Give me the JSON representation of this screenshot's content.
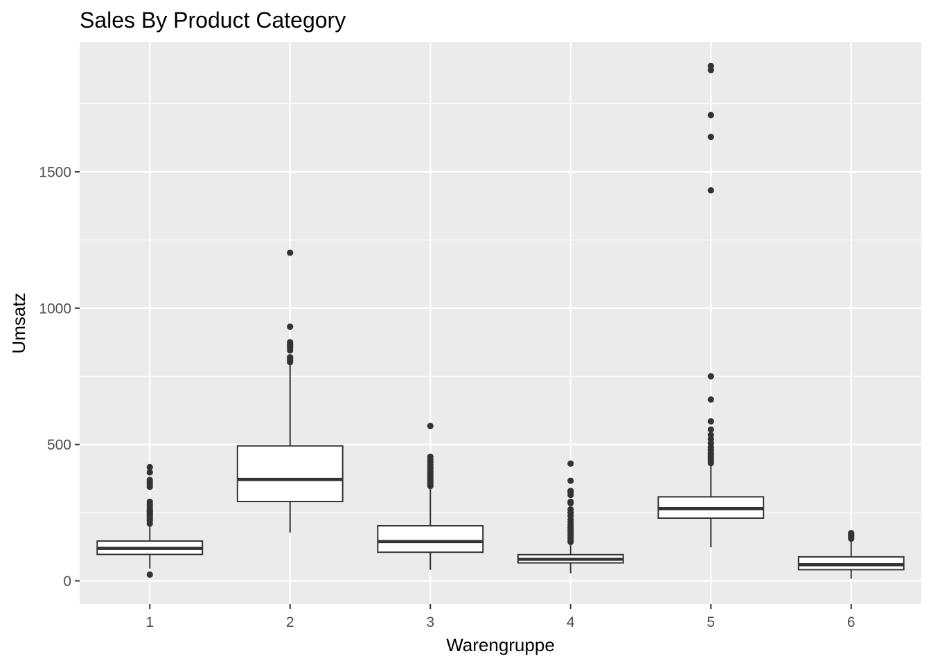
{
  "chart_data": {
    "type": "boxplot",
    "title": "Sales By Product Category",
    "xlabel": "Warengruppe",
    "ylabel": "Umsatz",
    "categories": [
      "1",
      "2",
      "3",
      "4",
      "5",
      "6"
    ],
    "ylim": [
      -85,
      1975
    ],
    "yticks": [
      0,
      500,
      1000,
      1500
    ],
    "grid": true,
    "legend": "none",
    "colors": {
      "panel_background": "#ebebeb",
      "grid_major": "#ffffff",
      "box_fill": "#ffffff",
      "box_line": "#333333",
      "outlier": "#333333",
      "tick_label": "#4d4d4d"
    },
    "boxes": [
      {
        "category": "1",
        "whisker_low": 45,
        "q1": 97,
        "median": 119,
        "q3": 146,
        "whisker_high": 218,
        "outliers": [
          23,
          210,
          220,
          225,
          230,
          235,
          240,
          245,
          250,
          255,
          260,
          268,
          275,
          282,
          290,
          345,
          355,
          362,
          370,
          398,
          417
        ]
      },
      {
        "category": "2",
        "whisker_low": 177,
        "q1": 291,
        "median": 372,
        "q3": 495,
        "whisker_high": 800,
        "outliers": [
          802,
          808,
          815,
          820,
          845,
          855,
          862,
          868,
          875,
          932,
          1203
        ]
      },
      {
        "category": "3",
        "whisker_low": 40,
        "q1": 105,
        "median": 144,
        "q3": 202,
        "whisker_high": 345,
        "outliers": [
          348,
          355,
          362,
          370,
          378,
          385,
          392,
          400,
          408,
          415,
          425,
          435,
          445,
          455,
          568
        ]
      },
      {
        "category": "4",
        "whisker_low": 28,
        "q1": 66,
        "median": 79,
        "q3": 96,
        "whisker_high": 140,
        "outliers": [
          143,
          150,
          157,
          165,
          172,
          180,
          188,
          196,
          205,
          215,
          225,
          238,
          250,
          262,
          285,
          290,
          315,
          325,
          330,
          367,
          430
        ]
      },
      {
        "category": "5",
        "whisker_low": 123,
        "q1": 230,
        "median": 265,
        "q3": 308,
        "whisker_high": 428,
        "outliers": [
          432,
          440,
          448,
          455,
          462,
          470,
          480,
          490,
          505,
          520,
          535,
          555,
          585,
          665,
          750,
          1432,
          1628,
          1708,
          1873,
          1888
        ]
      },
      {
        "category": "6",
        "whisker_low": 8,
        "q1": 41,
        "median": 59,
        "q3": 88,
        "whisker_high": 152,
        "outliers": [
          155,
          160,
          165,
          170,
          175
        ]
      }
    ]
  }
}
